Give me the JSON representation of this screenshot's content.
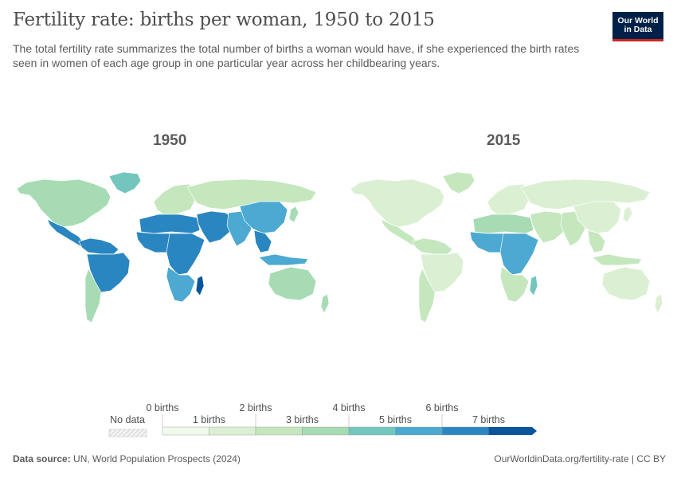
{
  "header": {
    "title": "Fertility rate: births per woman, 1950 to 2015",
    "subtitle": "The total fertility rate summarizes the total number of births a woman would have, if she experienced the birth rates seen in women of each age group in one particular year across her childbearing years.",
    "logo_line1": "Our World",
    "logo_line2": "in Data"
  },
  "maps": [
    {
      "year": "1950",
      "regions": [
        {
          "name": "North America",
          "value": 3.3
        },
        {
          "name": "Greenland",
          "value": 4.5
        },
        {
          "name": "Mexico & Central America",
          "value": 6.6
        },
        {
          "name": "South America North",
          "value": 6.2
        },
        {
          "name": "Brazil",
          "value": 6.1
        },
        {
          "name": "Southern Cone",
          "value": 3.2
        },
        {
          "name": "Europe",
          "value": 2.7
        },
        {
          "name": "Russia & Central Asia",
          "value": 2.9
        },
        {
          "name": "Middle East",
          "value": 6.9
        },
        {
          "name": "North Africa",
          "value": 6.8
        },
        {
          "name": "West Africa",
          "value": 6.5
        },
        {
          "name": "Central & East Africa",
          "value": 6.3
        },
        {
          "name": "Southern Africa",
          "value": 5.8
        },
        {
          "name": "Madagascar",
          "value": 7.2
        },
        {
          "name": "South Asia",
          "value": 5.9
        },
        {
          "name": "China",
          "value": 5.8
        },
        {
          "name": "Japan",
          "value": 3.0
        },
        {
          "name": "Southeast Asia",
          "value": 6.0
        },
        {
          "name": "Indonesia",
          "value": 5.5
        },
        {
          "name": "Australia",
          "value": 3.1
        },
        {
          "name": "New Zealand",
          "value": 3.5
        }
      ]
    },
    {
      "year": "2015",
      "regions": [
        {
          "name": "North America",
          "value": 1.8
        },
        {
          "name": "Greenland",
          "value": 2.0
        },
        {
          "name": "Mexico & Central America",
          "value": 2.3
        },
        {
          "name": "South America North",
          "value": 2.4
        },
        {
          "name": "Brazil",
          "value": 1.8
        },
        {
          "name": "Southern Cone",
          "value": 2.2
        },
        {
          "name": "Europe",
          "value": 1.6
        },
        {
          "name": "Russia & Central Asia",
          "value": 1.8
        },
        {
          "name": "Middle East",
          "value": 2.8
        },
        {
          "name": "North Africa",
          "value": 3.1
        },
        {
          "name": "West Africa",
          "value": 5.4
        },
        {
          "name": "Central & East Africa",
          "value": 5.6
        },
        {
          "name": "Southern Africa",
          "value": 2.5
        },
        {
          "name": "Madagascar",
          "value": 4.3
        },
        {
          "name": "South Asia",
          "value": 2.6
        },
        {
          "name": "China",
          "value": 1.7
        },
        {
          "name": "Japan",
          "value": 1.5
        },
        {
          "name": "Southeast Asia",
          "value": 2.3
        },
        {
          "name": "Indonesia",
          "value": 2.4
        },
        {
          "name": "Australia",
          "value": 1.8
        },
        {
          "name": "New Zealand",
          "value": 1.9
        }
      ]
    }
  ],
  "legend": {
    "no_data_label": "No data",
    "labels_top": [
      "0 births",
      "2 births",
      "4 births",
      "6 births"
    ],
    "labels_bottom": [
      "1 births",
      "3 births",
      "5 births",
      "7 births"
    ],
    "colors": [
      "#f1f9ea",
      "#dbf0d3",
      "#c4e7bd",
      "#a6dbb4",
      "#73c6bd",
      "#4ba9d2",
      "#2a86c0",
      "#0b559c"
    ],
    "no_data_color": "#dddddd"
  },
  "footer": {
    "source_label": "Data source:",
    "source_text": "UN, World Population Prospects (2024)",
    "url": "OurWorldinData.org/fertility-rate | CC BY"
  }
}
